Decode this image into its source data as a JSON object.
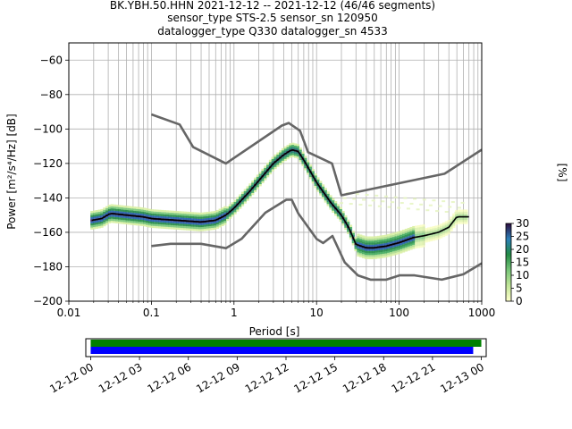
{
  "chart_data": [
    {
      "type": "heatmap",
      "title_lines": [
        "BK.YBH.50.HHN   2021-12-12 -- 2021-12-12  (46/46 segments)",
        "sensor_type STS-2.5 sensor_sn 120950",
        "datalogger_type Q330 datalogger_sn 4533"
      ],
      "xlabel": "Period [s]",
      "ylabel": "Power [m²/s⁴/Hz] [dB]",
      "xscale": "log",
      "xlim": [
        0.01,
        1000
      ],
      "ylim": [
        -200,
        -50
      ],
      "xticks": [
        {
          "v": 0.01,
          "label": "0.01"
        },
        {
          "v": 0.1,
          "label": "0.1"
        },
        {
          "v": 1,
          "label": "1"
        },
        {
          "v": 10,
          "label": "10"
        },
        {
          "v": 100,
          "label": "100"
        },
        {
          "v": 1000,
          "label": "1000"
        }
      ],
      "yticks": [
        {
          "v": -60,
          "label": "−60"
        },
        {
          "v": -80,
          "label": "−80"
        },
        {
          "v": -100,
          "label": "−100"
        },
        {
          "v": -120,
          "label": "−120"
        },
        {
          "v": -140,
          "label": "−140"
        },
        {
          "v": -160,
          "label": "−160"
        },
        {
          "v": -180,
          "label": "−180"
        },
        {
          "v": -200,
          "label": "−200"
        }
      ],
      "grid": true,
      "mean_psd": {
        "period": [
          0.019,
          0.025,
          0.032,
          0.05,
          0.08,
          0.1,
          0.2,
          0.4,
          0.6,
          0.8,
          1.0,
          1.5,
          2,
          3,
          4,
          5,
          6,
          7,
          10,
          15,
          20,
          25,
          30,
          40,
          50,
          70,
          100,
          150,
          200,
          300,
          400,
          500,
          700
        ],
        "db": [
          -153,
          -152,
          -149,
          -150,
          -151,
          -152,
          -153,
          -154,
          -153,
          -150,
          -146,
          -137,
          -130,
          -120,
          -115,
          -112,
          -113,
          -118,
          -131,
          -143,
          -150,
          -158,
          -167,
          -169,
          -169,
          -168,
          -166,
          -163,
          -162,
          -160,
          -157,
          -151,
          -151
        ]
      },
      "high_noise_model": {
        "period": [
          0.1,
          0.22,
          0.32,
          0.8,
          3.8,
          4.6,
          6.3,
          7.9,
          15.4,
          20,
          354.8,
          1000
        ],
        "db": [
          -91.5,
          -97.4,
          -110.5,
          -120,
          -98,
          -96.5,
          -101,
          -113.5,
          -120,
          -138.5,
          -126,
          -112
        ]
      },
      "low_noise_model": {
        "period": [
          0.1,
          0.17,
          0.4,
          0.8,
          1.24,
          2.4,
          4.3,
          5.0,
          6.0,
          10.0,
          12.0,
          15.6,
          21.9,
          31.6,
          45,
          70,
          101,
          154,
          328,
          600,
          1000
        ],
        "db": [
          -168,
          -166.7,
          -166.7,
          -169.2,
          -163.7,
          -148.6,
          -141.1,
          -141.1,
          -149,
          -163.8,
          -166.2,
          -162.1,
          -177.5,
          -185,
          -187.5,
          -187.5,
          -185,
          -185,
          -187.5,
          -184.4,
          -178
        ]
      },
      "colorbar": {
        "label": "[%]",
        "ticks": [
          "0",
          "5",
          "10",
          "15",
          "20",
          "25",
          "30"
        ],
        "vmin": 0,
        "vmax": 30
      },
      "colors": {
        "mean_line": "#000000",
        "noise_models": "#666666",
        "grid": "#b0b0b0"
      }
    },
    {
      "type": "timeline",
      "tick_labels": [
        "12-12 00",
        "12-12 03",
        "12-12 06",
        "12-12 09",
        "12-12 12",
        "12-12 15",
        "12-12 18",
        "12-12 21",
        "12-13 00"
      ],
      "xlim_hours": [
        -0.3,
        24.3
      ],
      "bars": [
        {
          "start_hour": 0,
          "end_hour": 24,
          "color": "#008000"
        },
        {
          "start_hour": 0,
          "end_hour": 23.5,
          "color": "#0000ff"
        }
      ]
    }
  ]
}
